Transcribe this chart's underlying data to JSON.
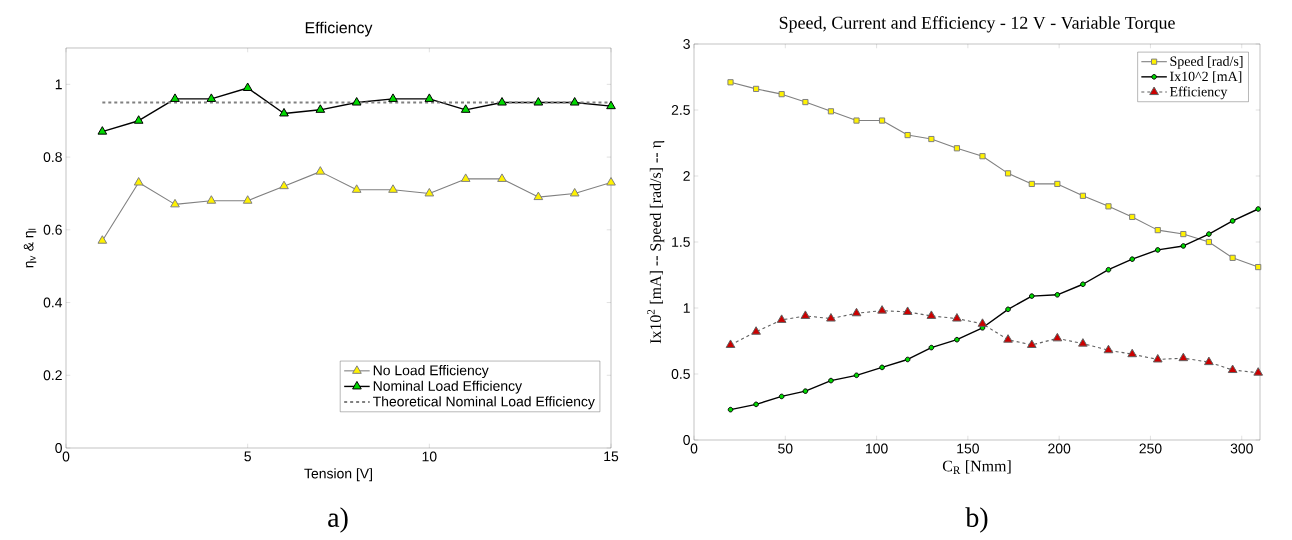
{
  "chart_data": [
    {
      "type": "line",
      "title": "Efficiency",
      "xlabel": "Tension [V]",
      "ylabel": "η$_{v}$ & η$_{l}$",
      "annotations": [
        "a)"
      ],
      "x": [
        1,
        2,
        3,
        4,
        5,
        6,
        7,
        8,
        9,
        10,
        11,
        12,
        13,
        14,
        15
      ],
      "series": [
        {
          "name": "No Load Efficiency",
          "color": "#808080",
          "marker": "triangle",
          "values": [
            0.57,
            0.73,
            0.67,
            0.68,
            0.68,
            0.72,
            0.76,
            0.71,
            0.71,
            0.7,
            0.74,
            0.74,
            0.69,
            0.7,
            0.73
          ]
        },
        {
          "name": "Nominal Load Efficiency",
          "color": "#000000",
          "marker": "triangle",
          "values": [
            0.87,
            0.9,
            0.96,
            0.96,
            0.99,
            0.92,
            0.93,
            0.95,
            0.96,
            0.96,
            0.93,
            0.95,
            0.95,
            0.95,
            0.94
          ]
        },
        {
          "name": "Theoretical Nominal Load Efficiency",
          "color": "#808080",
          "marker": "none",
          "line_style": "dashed",
          "x": [
            1,
            15
          ],
          "values": [
            0.95,
            0.95
          ]
        }
      ],
      "xlim": [
        0,
        15
      ],
      "xticks": [
        0,
        5,
        10,
        15
      ],
      "ylim": [
        0,
        1.1
      ],
      "yticks": [
        0,
        0.2,
        0.4,
        0.6,
        0.8,
        1
      ],
      "legend": "bottom right",
      "grid": false
    },
    {
      "type": "line",
      "title": "Speed, Current and Efficiency - 12 V - Variable Torque",
      "xlabel": "C$_{R}$ [Nmm]",
      "ylabel": "Ix10$^{2}$ [mA] -- Speed [rad/s] -- η",
      "annotations": [
        "b)"
      ],
      "x": [
        20,
        34,
        48,
        61,
        75,
        89,
        103,
        117,
        130,
        144,
        158,
        172,
        185,
        199,
        213,
        227,
        240,
        254,
        268,
        282,
        295,
        309
      ],
      "series": [
        {
          "name": "Speed [rad/s]",
          "color": "#808080",
          "marker": "square",
          "values": [
            2.71,
            2.66,
            2.62,
            2.56,
            2.49,
            2.42,
            2.42,
            2.31,
            2.28,
            2.21,
            2.15,
            2.02,
            1.94,
            1.94,
            1.85,
            1.77,
            1.69,
            1.59,
            1.56,
            1.5,
            1.38,
            1.31
          ]
        },
        {
          "name": "Ix10^2 [mA]",
          "color": "#000000",
          "marker": "circle",
          "values": [
            0.23,
            0.27,
            0.33,
            0.37,
            0.45,
            0.49,
            0.55,
            0.61,
            0.7,
            0.76,
            0.85,
            0.99,
            1.09,
            1.1,
            1.18,
            1.29,
            1.37,
            1.44,
            1.47,
            1.56,
            1.66,
            1.75
          ]
        },
        {
          "name": "Efficiency",
          "color": "#606060",
          "marker": "triangle",
          "line_style": "dashed",
          "values": [
            0.72,
            0.82,
            0.91,
            0.94,
            0.92,
            0.96,
            0.98,
            0.97,
            0.94,
            0.92,
            0.88,
            0.76,
            0.72,
            0.77,
            0.73,
            0.68,
            0.65,
            0.61,
            0.62,
            0.59,
            0.53,
            0.51
          ]
        }
      ],
      "xlim": [
        0,
        310
      ],
      "xticks": [
        0,
        50,
        100,
        150,
        200,
        250,
        300
      ],
      "ylim": [
        0,
        3
      ],
      "yticks": [
        0,
        0.5,
        1,
        1.5,
        2,
        2.5,
        3
      ],
      "legend": "top right",
      "grid": false
    }
  ]
}
